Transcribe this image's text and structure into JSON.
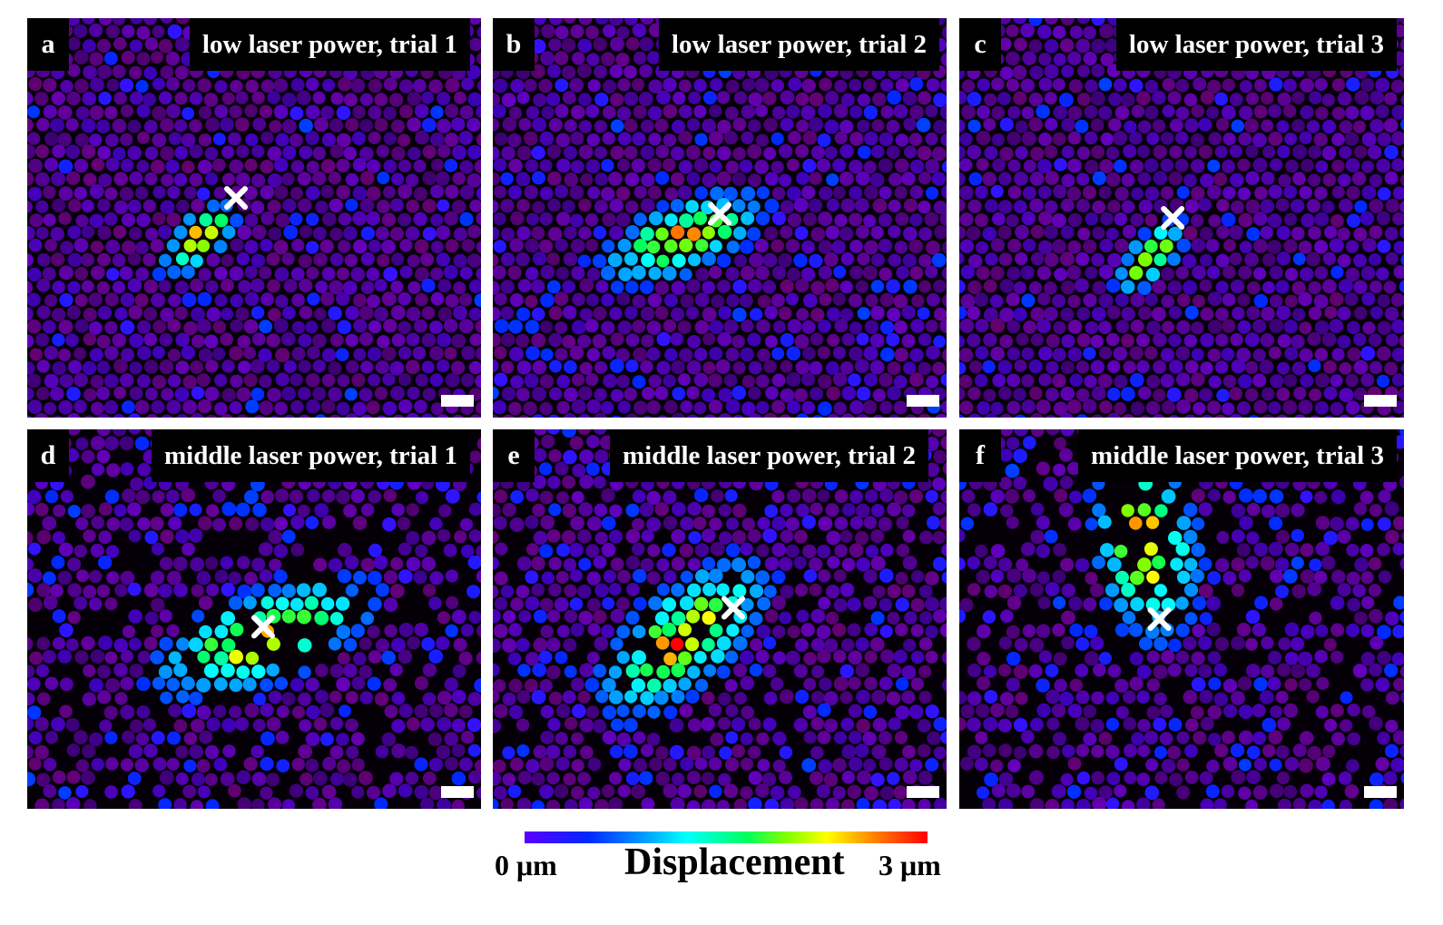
{
  "panels": [
    {
      "letter": "a",
      "title": "low laser power, trial 1"
    },
    {
      "letter": "b",
      "title": "low laser power, trial 2"
    },
    {
      "letter": "c",
      "title": "low laser power, trial 3"
    },
    {
      "letter": "d",
      "title": "middle laser power, trial 1"
    },
    {
      "letter": "e",
      "title": "middle laser power, trial 2"
    },
    {
      "letter": "f",
      "title": "middle laser power, trial 3"
    }
  ],
  "colorbar": {
    "min_label": "0 μm",
    "max_label": "3 μm",
    "title": "Displacement",
    "min_value": 0,
    "max_value": 3,
    "unit": "μm",
    "colors": [
      "#5a00ff",
      "#0028ff",
      "#00a0ff",
      "#00ffff",
      "#00ff60",
      "#80ff00",
      "#ffff00",
      "#ff8000",
      "#ff0000"
    ]
  },
  "marker_icon": "cross-x-icon",
  "scalebar_color": "#ffffff"
}
